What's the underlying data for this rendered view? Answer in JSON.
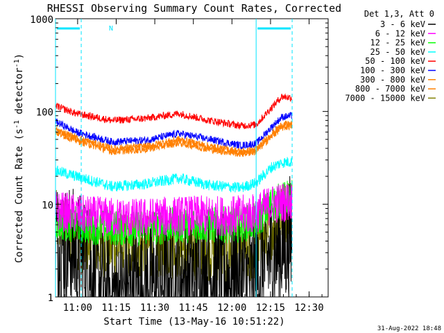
{
  "chart_data": {
    "type": "line",
    "title": "RHESSI Observing Summary Count Rates, Corrected",
    "xlabel": "Start Time (13-May-16 10:51:22)",
    "ylabel_main": "Corrected Count Rate (s",
    "ylabel_sup1": "-1",
    "ylabel_mid": " detector",
    "ylabel_sup2": "-1",
    "ylabel_end": ")",
    "yscale": "log",
    "ylim": [
      1,
      1000
    ],
    "x_unit": "minutes after 10:51:22",
    "xlim": [
      0,
      106
    ],
    "x_ticks": [
      {
        "label": "11:00",
        "value": 8.6
      },
      {
        "label": "11:15",
        "value": 23.6
      },
      {
        "label": "11:30",
        "value": 38.6
      },
      {
        "label": "11:45",
        "value": 53.6
      },
      {
        "label": "12:00",
        "value": 68.6
      },
      {
        "label": "12:15",
        "value": 83.6
      },
      {
        "label": "12:30",
        "value": 98.6
      }
    ],
    "y_ticks": [
      {
        "label": "1000",
        "value": 1000
      },
      {
        "label": "100",
        "value": 100
      },
      {
        "label": "10",
        "value": 10
      },
      {
        "label": "1",
        "value": 1
      }
    ],
    "legend_title": "Det 1,3, Att 0",
    "legend_position": "right",
    "night_marker_label": "N",
    "night_intervals": [
      [
        0,
        10
      ],
      [
        78,
        92
      ]
    ],
    "saa_lines": [
      0,
      10,
      78,
      92
    ],
    "timestamp": "31-Aug-2022 18:48",
    "series": [
      {
        "name": "3 - 6 keV",
        "color": "#000000",
        "noise": 0.7,
        "profile": [
          [
            0,
            4
          ],
          [
            10,
            2.8
          ],
          [
            20,
            1
          ],
          [
            40,
            1.4
          ],
          [
            60,
            1.8
          ],
          [
            76,
            1.5
          ],
          [
            82,
            2.5
          ],
          [
            92,
            4.5
          ]
        ]
      },
      {
        "name": "6 - 12 keV",
        "color": "#ff00ff",
        "noise": 0.22,
        "profile": [
          [
            0,
            8.5
          ],
          [
            12,
            7.5
          ],
          [
            30,
            7.0
          ],
          [
            50,
            7.5
          ],
          [
            70,
            7.5
          ],
          [
            78,
            8
          ],
          [
            84,
            10
          ],
          [
            92,
            11
          ]
        ]
      },
      {
        "name": "12 - 25 keV",
        "color": "#00ff00",
        "noise": 0.2,
        "profile": [
          [
            0,
            6.5
          ],
          [
            12,
            5.8
          ],
          [
            30,
            5.5
          ],
          [
            50,
            6
          ],
          [
            70,
            6
          ],
          [
            78,
            6.5
          ],
          [
            84,
            10
          ],
          [
            92,
            12
          ]
        ]
      },
      {
        "name": "25 - 50 keV",
        "color": "#00ffff",
        "noise": 0.06,
        "profile": [
          [
            0,
            23
          ],
          [
            8,
            20
          ],
          [
            22,
            15.5
          ],
          [
            35,
            16.5
          ],
          [
            48,
            19
          ],
          [
            60,
            16
          ],
          [
            72,
            15
          ],
          [
            78,
            17
          ],
          [
            84,
            25
          ],
          [
            88,
            28
          ],
          [
            92,
            29
          ]
        ]
      },
      {
        "name": "50 - 100 keV",
        "color": "#ff0000",
        "noise": 0.04,
        "profile": [
          [
            0,
            115
          ],
          [
            8,
            95
          ],
          [
            22,
            80
          ],
          [
            35,
            84
          ],
          [
            48,
            95
          ],
          [
            60,
            80
          ],
          [
            72,
            70
          ],
          [
            78,
            72
          ],
          [
            84,
            110
          ],
          [
            88,
            145
          ],
          [
            92,
            140
          ]
        ]
      },
      {
        "name": "100 - 300 keV",
        "color": "#0000ff",
        "noise": 0.04,
        "profile": [
          [
            0,
            78
          ],
          [
            8,
            60
          ],
          [
            22,
            47
          ],
          [
            35,
            49
          ],
          [
            48,
            58
          ],
          [
            60,
            50
          ],
          [
            72,
            43
          ],
          [
            78,
            45
          ],
          [
            84,
            68
          ],
          [
            88,
            87
          ],
          [
            92,
            90
          ]
        ]
      },
      {
        "name": "300 - 800 keV",
        "color": "#ff8000",
        "noise": 0.04,
        "profile": [
          [
            0,
            64
          ],
          [
            8,
            52
          ],
          [
            22,
            40
          ],
          [
            35,
            42
          ],
          [
            48,
            50
          ],
          [
            60,
            42
          ],
          [
            72,
            37
          ],
          [
            78,
            39
          ],
          [
            84,
            57
          ],
          [
            88,
            72
          ],
          [
            92,
            73
          ]
        ]
      },
      {
        "name": "800 - 7000 keV",
        "color": "#ff8000",
        "noise": 0.04,
        "profile": [
          [
            0,
            60
          ],
          [
            8,
            49
          ],
          [
            22,
            37
          ],
          [
            35,
            39
          ],
          [
            48,
            46
          ],
          [
            60,
            39
          ],
          [
            72,
            35
          ],
          [
            78,
            37
          ],
          [
            84,
            54
          ],
          [
            88,
            67
          ],
          [
            92,
            70
          ]
        ]
      },
      {
        "name": "7000 - 15000 keV",
        "color": "#808000",
        "noise": 0.35,
        "profile": [
          [
            0,
            6.5
          ],
          [
            10,
            4
          ],
          [
            20,
            3.5
          ],
          [
            40,
            3.5
          ],
          [
            60,
            3.3
          ],
          [
            76,
            3
          ],
          [
            80,
            4
          ],
          [
            88,
            8
          ],
          [
            92,
            9.5
          ]
        ]
      }
    ]
  }
}
